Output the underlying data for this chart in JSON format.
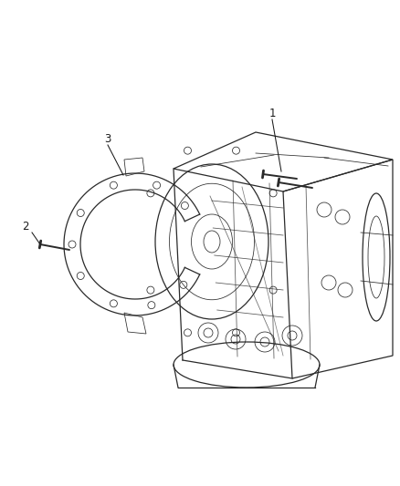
{
  "background_color": "#ffffff",
  "fig_width": 4.38,
  "fig_height": 5.33,
  "dpi": 100,
  "label_1": "1",
  "label_2": "2",
  "label_3": "3",
  "label_color": "#1a1a1a",
  "line_color": "#2a2a2a",
  "lw_main": 0.9,
  "lw_thin": 0.55,
  "lw_thick": 1.2
}
